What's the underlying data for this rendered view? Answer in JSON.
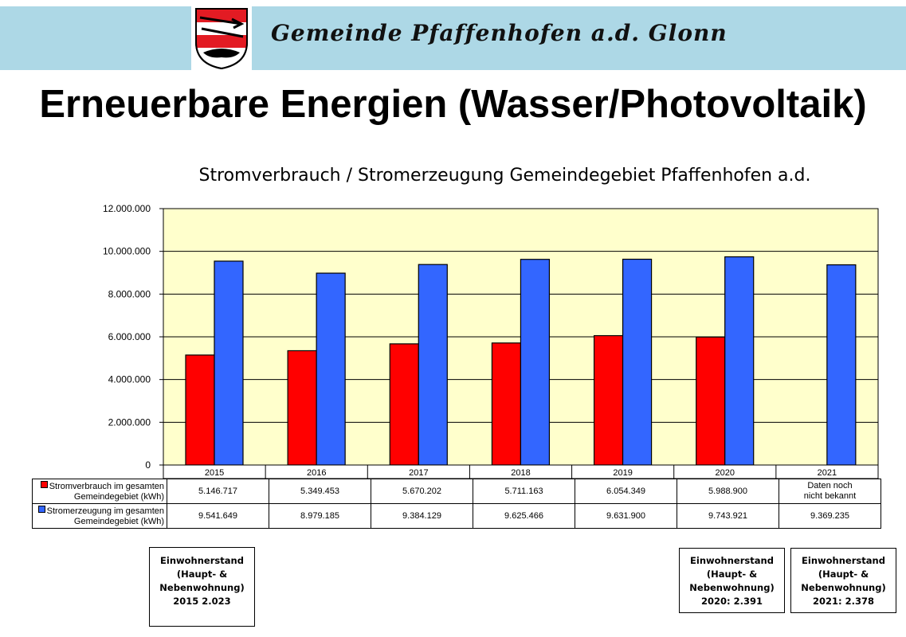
{
  "header": {
    "municipality": "Gemeinde Pfaffenhofen a.d. Glonn",
    "headline": "Erneuerbare Energien (Wasser/Photovoltaik)"
  },
  "colors": {
    "banner": "#add8e6",
    "plot_area": "#ffffcc",
    "consumption": "#ff0000",
    "production": "#3366ff"
  },
  "chart_data": {
    "type": "bar",
    "title": "Stromverbrauch / Stromerzeugung Gemeindegebiet Pfaffenhofen a.d.",
    "categories": [
      "2015",
      "2016",
      "2017",
      "2018",
      "2019",
      "2020",
      "2021"
    ],
    "ylim": [
      0,
      12000000
    ],
    "yticks": [
      0,
      2000000,
      4000000,
      6000000,
      8000000,
      10000000,
      12000000
    ],
    "ytick_labels": [
      "0",
      "2.000.000",
      "4.000.000",
      "6.000.000",
      "8.000.000",
      "10.000.000",
      "12.000.000"
    ],
    "grid": true,
    "legend": "data table",
    "series": [
      {
        "name": "Stromverbrauch im gesamten Gemeindegebiet (kWh)",
        "name_line1": "Stromverbrauch im gesamten",
        "name_line2": "Gemeindegebiet (kWh)",
        "values": [
          5146717,
          5349453,
          5670202,
          5711163,
          6054349,
          5988900,
          null
        ],
        "labels": [
          "5.146.717",
          "5.349.453",
          "5.670.202",
          "5.711.163",
          "6.054.349",
          "5.988.900",
          "Daten noch nicht bekannt"
        ],
        "label_2021_line1": "Daten noch",
        "label_2021_line2": "nicht bekannt"
      },
      {
        "name": "Stromerzeugung im gesamten Gemeindegebiet (kWh)",
        "name_line1": "Stromerzeugung im gesamten",
        "name_line2": "Gemeindegebiet (kWh)",
        "values": [
          9541649,
          8979185,
          9384129,
          9625466,
          9631900,
          9743921,
          9369235
        ],
        "labels": [
          "9.541.649",
          "8.979.185",
          "9.384.129",
          "9.625.466",
          "9.631.900",
          "9.743.921",
          "9.369.235"
        ]
      }
    ]
  },
  "population_boxes": [
    {
      "line1": "Einwohnerstand",
      "line2": "(Haupt- &",
      "line3": "Nebenwohnung)",
      "line4": "2015 2.023"
    },
    {
      "line1": "Einwohnerstand",
      "line2": "(Haupt- &",
      "line3": "Nebenwohnung)",
      "line4": "2020:  2.391"
    },
    {
      "line1": "Einwohnerstand",
      "line2": "(Haupt- &",
      "line3": "Nebenwohnung)",
      "line4": "2021:  2.378"
    }
  ]
}
